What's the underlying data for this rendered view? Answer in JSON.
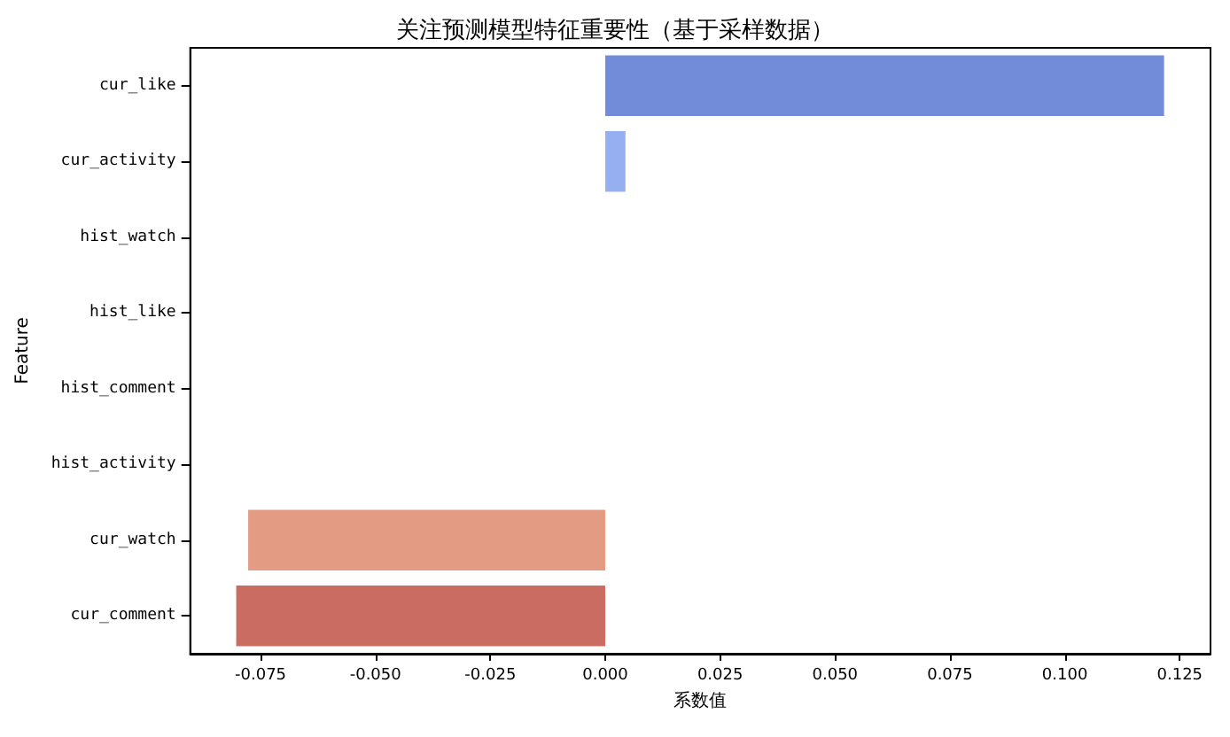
{
  "chart_data": {
    "type": "bar",
    "orientation": "horizontal",
    "title": "关注预测模型特征重要性（基于采样数据）",
    "xlabel": "系数值",
    "ylabel": "Feature",
    "categories": [
      "cur_like",
      "cur_activity",
      "hist_watch",
      "hist_like",
      "hist_comment",
      "hist_activity",
      "cur_watch",
      "cur_comment"
    ],
    "values": [
      0.1216,
      0.0044,
      0,
      0,
      0,
      0,
      -0.0777,
      -0.0803
    ],
    "colors": [
      "#6b86d8",
      "#8fabef",
      "#b2ccfb",
      "#d0dbf0",
      "#ecd3c5",
      "#f2b9a0",
      "#e3967c",
      "#c8645a"
    ],
    "xlim": [
      -0.0903,
      0.1317
    ],
    "xticks": [
      {
        "value": -0.075,
        "label": "-0.075"
      },
      {
        "value": -0.05,
        "label": "-0.050"
      },
      {
        "value": -0.025,
        "label": "-0.025"
      },
      {
        "value": 0,
        "label": "0.000"
      },
      {
        "value": 0.025,
        "label": "0.025"
      },
      {
        "value": 0.05,
        "label": "0.050"
      },
      {
        "value": 0.075,
        "label": "0.075"
      },
      {
        "value": 0.1,
        "label": "0.100"
      },
      {
        "value": 0.125,
        "label": "0.125"
      }
    ]
  }
}
